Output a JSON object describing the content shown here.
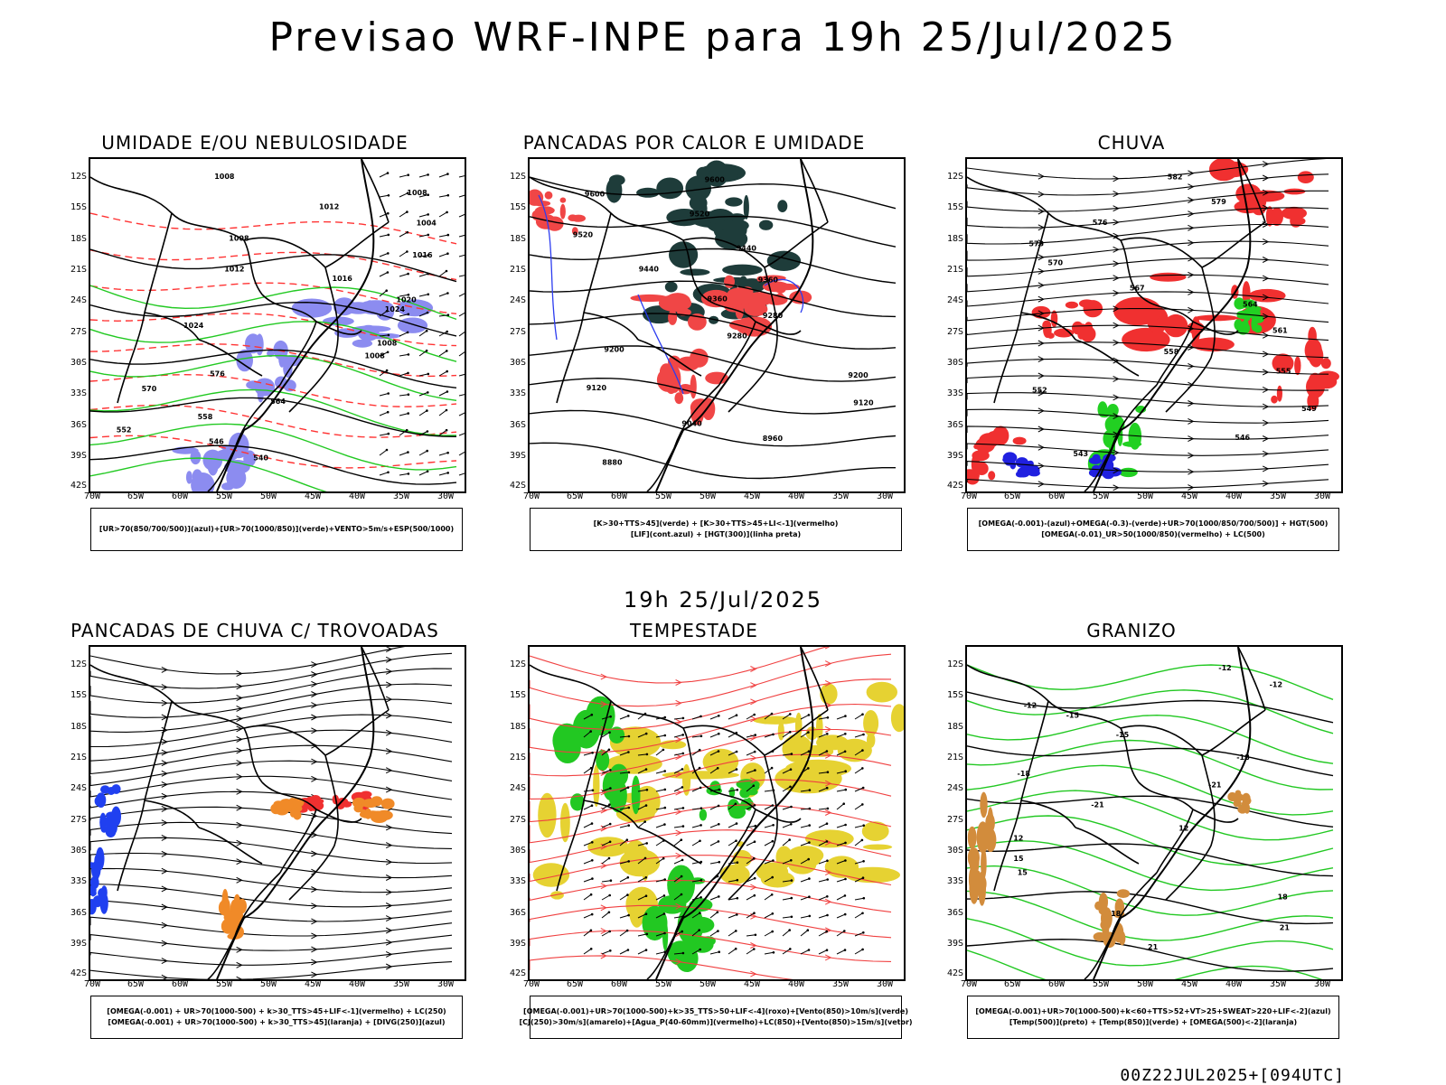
{
  "title": "Previsao WRF-INPE  para 19h 25/Jul/2025",
  "mid_title": "19h 25/Jul/2025",
  "footer": "00Z22JUL2025+[094UTC]",
  "lat_labels": [
    "12S",
    "15S",
    "18S",
    "21S",
    "24S",
    "27S",
    "30S",
    "33S",
    "36S",
    "39S",
    "42S"
  ],
  "lon_labels": [
    "70W",
    "65W",
    "60W",
    "55W",
    "50W",
    "45W",
    "40W",
    "35W",
    "30W"
  ],
  "panels": [
    {
      "id": "umidade",
      "title": "UMIDADE E/OU NEBULOSIDADE",
      "legend": [
        "[UR>70(850/700/500)](azul)+[UR>70(1000/850)](verde)+VENTO>5m/s+ESP(500/1000)"
      ],
      "contour_labels": [
        "1008",
        "1008",
        "1012",
        "1004",
        "1008",
        "1016",
        "1012",
        "1016",
        "1020",
        "1024",
        "1024",
        "1008",
        "1008",
        "576",
        "570",
        "564",
        "558",
        "552",
        "546",
        "540"
      ],
      "colors": {
        "fill": "#8c8cf0",
        "contour": "#22c922",
        "dashed": "#ff3333"
      }
    },
    {
      "id": "pancadas-calor",
      "title": "PANCADAS POR CALOR E UMIDADE",
      "legend": [
        "[K>30+TTS>45](verde) + [K>30+TTS>45+LI<-1](vermelho)",
        "[LIF](cont.azul) + [HGT(300)](linha preta)"
      ],
      "contour_labels": [
        "9600",
        "9600",
        "9520",
        "9520",
        "9440",
        "9440",
        "9360",
        "9360",
        "9280",
        "9280",
        "9200",
        "9200",
        "9120",
        "9120",
        "9040",
        "8960",
        "8880"
      ],
      "colors": {
        "green": "#1e3c3a",
        "red": "#f04646",
        "blue": "#2c3cf0"
      }
    },
    {
      "id": "chuva",
      "title": "CHUVA",
      "legend": [
        "[OMEGA(-0.001)-(azul)+OMEGA(-0.3)-(verde)+UR>70(1000/850/700/500)] + HGT(500)",
        "[OMEGA(-0.01)_UR>50(1000/850)(vermelho) + LC(500)"
      ],
      "contour_labels": [
        "582",
        "579",
        "576",
        "573",
        "570",
        "567",
        "564",
        "561",
        "558",
        "555",
        "552",
        "549",
        "546",
        "543"
      ],
      "colors": {
        "red": "#f03030",
        "green": "#22d022",
        "blue": "#2020e0"
      }
    },
    {
      "id": "trovoadas",
      "title": "PANCADAS DE CHUVA C/ TROVOADAS",
      "legend": [
        "[OMEGA(-0.001) + UR>70(1000-500) + k>30_TTS>45+LIF<-1](vermelho) + LC(250)",
        "[OMEGA(-0.001) + UR>70(1000-500) + k>30_TTS>45](laranja) + [DIVG(250)](azul)"
      ],
      "contour_labels": [],
      "colors": {
        "red": "#f03030",
        "orange": "#f08a28",
        "blue": "#2040f0"
      }
    },
    {
      "id": "tempestade",
      "title": "TEMPESTADE",
      "legend": [
        "[OMEGA(-0.001)+UR>70(1000-500)+k>35_TTS>50+LIF<-4](roxo)+[Vento(850)>10m/s](verde)",
        "[CJ(250)>30m/s](amarelo)+[Agua_P(40-60mm)](vermelho)+LC(850)+[Vento(850)>15m/s](vetor)"
      ],
      "contour_labels": [],
      "colors": {
        "yellow": "#e6d232",
        "green": "#22c822",
        "red": "#f04040"
      }
    },
    {
      "id": "granizo",
      "title": "GRANIZO",
      "legend": [
        "[OMEGA(-0.001)+UR>70(1000-500)+k<60+TTS>52+VT>25+SWEAT>220+LIF<-2](azul)",
        "[Temp(500)](preto) + [Temp(850)](verde) + [OMEGA(500)<-2](laranja)"
      ],
      "contour_labels": [
        "-12",
        "-12",
        "-12",
        "-15",
        "-15",
        "-18",
        "-18",
        "-21",
        "-21",
        "12",
        "12",
        "15",
        "15",
        "18",
        "18",
        "21",
        "21"
      ],
      "colors": {
        "green": "#22c822",
        "orange": "#d28c3c",
        "black": "#000000"
      }
    }
  ]
}
